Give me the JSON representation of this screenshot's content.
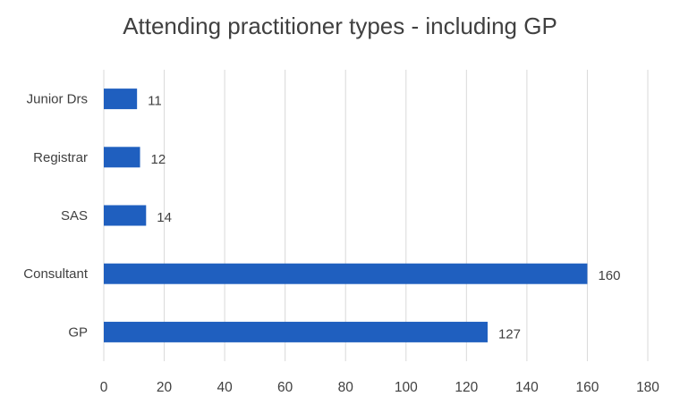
{
  "chart_data": {
    "type": "bar",
    "orientation": "horizontal",
    "title": "Attending practitioner types - including GP",
    "categories": [
      "Junior Drs",
      "Registrar",
      "SAS",
      "Consultant",
      "GP"
    ],
    "values": [
      11,
      12,
      14,
      160,
      127
    ],
    "data_labels": [
      "11",
      "12",
      "14",
      "160",
      "127"
    ],
    "xlim": [
      0,
      180
    ],
    "x_ticks": [
      0,
      20,
      40,
      60,
      80,
      100,
      120,
      140,
      160,
      180
    ],
    "x_tick_labels": [
      "0",
      "20",
      "40",
      "60",
      "80",
      "100",
      "120",
      "140",
      "160",
      "180"
    ],
    "grid": "vertical",
    "legend": "none",
    "bar_color": "#1F5FBF",
    "grid_color": "#D9D9D9",
    "text_color": "#404040"
  }
}
